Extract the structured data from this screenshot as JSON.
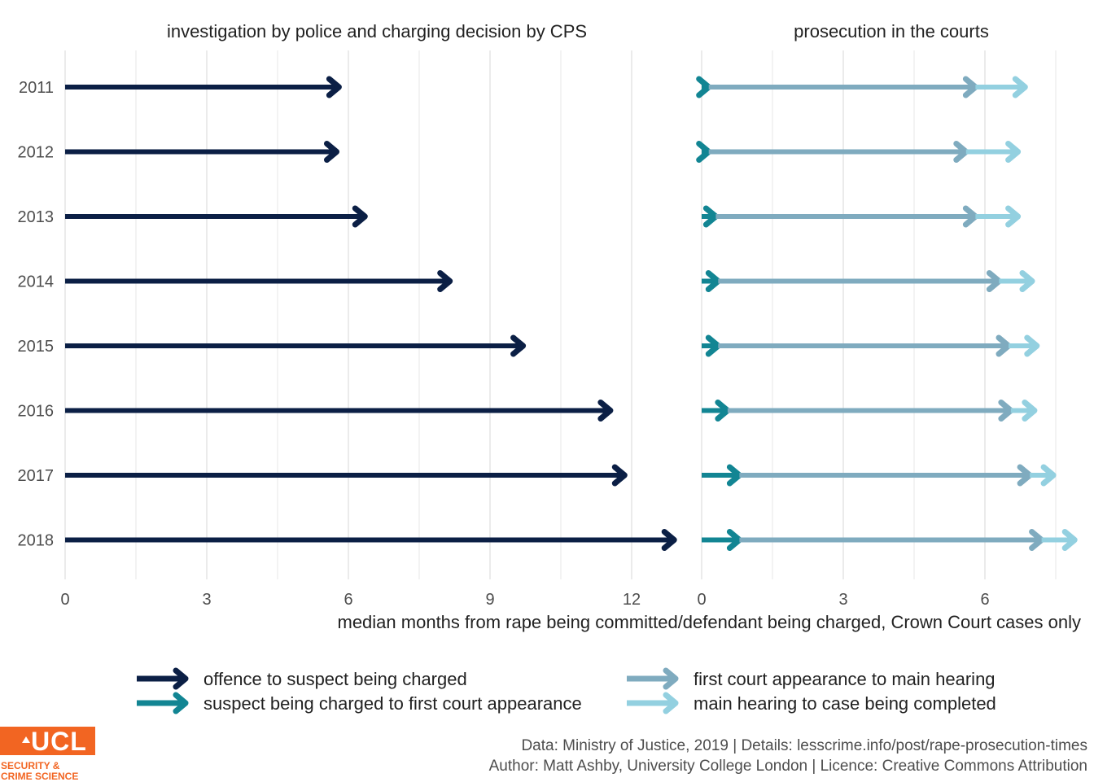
{
  "chart_data": {
    "type": "arrow-range",
    "years": [
      "2011",
      "2012",
      "2013",
      "2014",
      "2015",
      "2016",
      "2017",
      "2018"
    ],
    "panels": [
      {
        "title": "investigation by police and charging decision by CPS",
        "xlim": [
          0,
          13.2
        ],
        "ticks": [
          0,
          3,
          6,
          9,
          12
        ],
        "series": [
          {
            "name": "offence to suspect being charged",
            "color": "#0b1f45",
            "start": [
              0,
              0,
              0,
              0,
              0,
              0,
              0,
              0
            ],
            "end": [
              5.8,
              5.75,
              6.35,
              8.15,
              9.7,
              11.55,
              11.85,
              12.9
            ]
          }
        ]
      },
      {
        "title": "prosecution in the courts",
        "xlim": [
          0,
          8
        ],
        "ticks": [
          0,
          3,
          6
        ],
        "series": [
          {
            "name": "suspect being charged to first court appearance",
            "color": "#128593",
            "start": [
              0,
              0,
              0,
              0,
              0,
              0,
              0,
              0
            ],
            "end": [
              0.15,
              0.15,
              0.3,
              0.35,
              0.35,
              0.55,
              0.8,
              0.8
            ]
          },
          {
            "name": "first court appearance to main hearing",
            "color": "#7fabbf",
            "start": [
              0.15,
              0.15,
              0.3,
              0.35,
              0.35,
              0.55,
              0.8,
              0.8
            ],
            "end": [
              5.8,
              5.6,
              5.8,
              6.3,
              6.5,
              6.55,
              6.95,
              7.2
            ]
          },
          {
            "name": "main hearing to case being completed",
            "color": "#93d0e0",
            "start": [
              5.8,
              5.6,
              5.8,
              6.3,
              6.5,
              6.55,
              6.95,
              7.2
            ],
            "end": [
              6.85,
              6.7,
              6.7,
              7.0,
              7.1,
              7.05,
              7.45,
              7.9
            ]
          }
        ]
      }
    ],
    "xlabel": "median months from rape being committed/defendant being charged, Crown Court cases only",
    "legend": [
      "offence to suspect being charged",
      "suspect being charged to first court appearance",
      "first court appearance to main hearing",
      "main hearing to case being completed"
    ],
    "legend_position": "bottom"
  },
  "caption": {
    "line1": "Data: Ministry of Justice, 2019 |  Details: lesscrime.info/post/rape-prosecution-times",
    "line2": "Author: Matt Ashby, University College London |  Licence: Creative Commons Attribution"
  },
  "logo": {
    "word": "UCL",
    "line1": "SECURITY &",
    "line2": "CRIME SCIENCE",
    "color": "#f26522"
  }
}
